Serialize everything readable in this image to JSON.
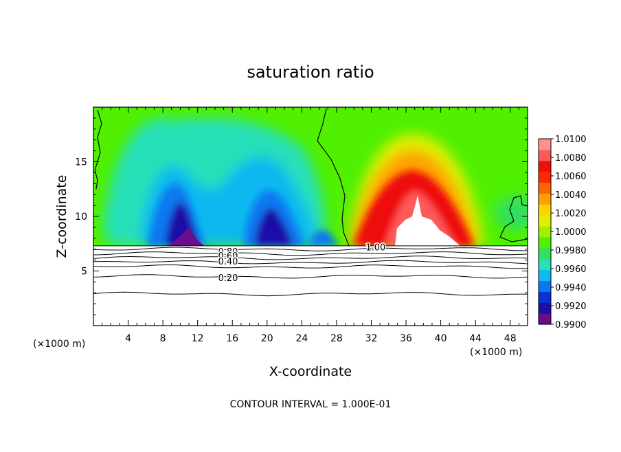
{
  "chart_data": {
    "type": "heatmap",
    "title": "saturation ratio",
    "xlabel": "X-coordinate",
    "ylabel": "Z-coordinate",
    "x_unit": "(×1000 m)",
    "z_unit": "(×1000 m)",
    "footer": "CONTOUR INTERVAL = 1.000E-01",
    "xlim": [
      0,
      50
    ],
    "ylim": [
      0,
      20
    ],
    "x_ticks": [
      4,
      8,
      12,
      16,
      20,
      24,
      28,
      32,
      36,
      40,
      44,
      48
    ],
    "y_ticks": [
      5,
      10,
      15
    ],
    "colorbar": {
      "range": [
        0.99,
        1.01
      ],
      "labels": [
        "1.0100",
        "1.0080",
        "1.0060",
        "1.0040",
        "1.0020",
        "1.0000",
        "0.9980",
        "0.9960",
        "0.9940",
        "0.9920",
        "0.9900"
      ],
      "colors": [
        "#6a0d8c",
        "#1a10a8",
        "#0a32d8",
        "#0a78f0",
        "#10b8f0",
        "#28e0b8",
        "#30e060",
        "#50f000",
        "#a0f000",
        "#e0f000",
        "#ffd400",
        "#ffa000",
        "#ff6400",
        "#ff2800",
        "#ee1010",
        "#ff5a5a",
        "#ff9090"
      ]
    },
    "cloud_base_z": 7.3,
    "contour_labels": [
      {
        "text": "0.80",
        "x": 15.5,
        "z": 6.8
      },
      {
        "text": "0.60",
        "x": 15.5,
        "z": 6.4
      },
      {
        "text": "0.40",
        "x": 15.5,
        "z": 5.9
      },
      {
        "text": "0.20",
        "x": 15.5,
        "z": 4.4
      },
      {
        "text": "1.00",
        "x": 32.5,
        "z": 7.2
      }
    ],
    "subsaturated_contour_z": [
      7.0,
      6.6,
      6.2,
      5.8,
      5.4,
      4.5,
      2.9
    ]
  }
}
